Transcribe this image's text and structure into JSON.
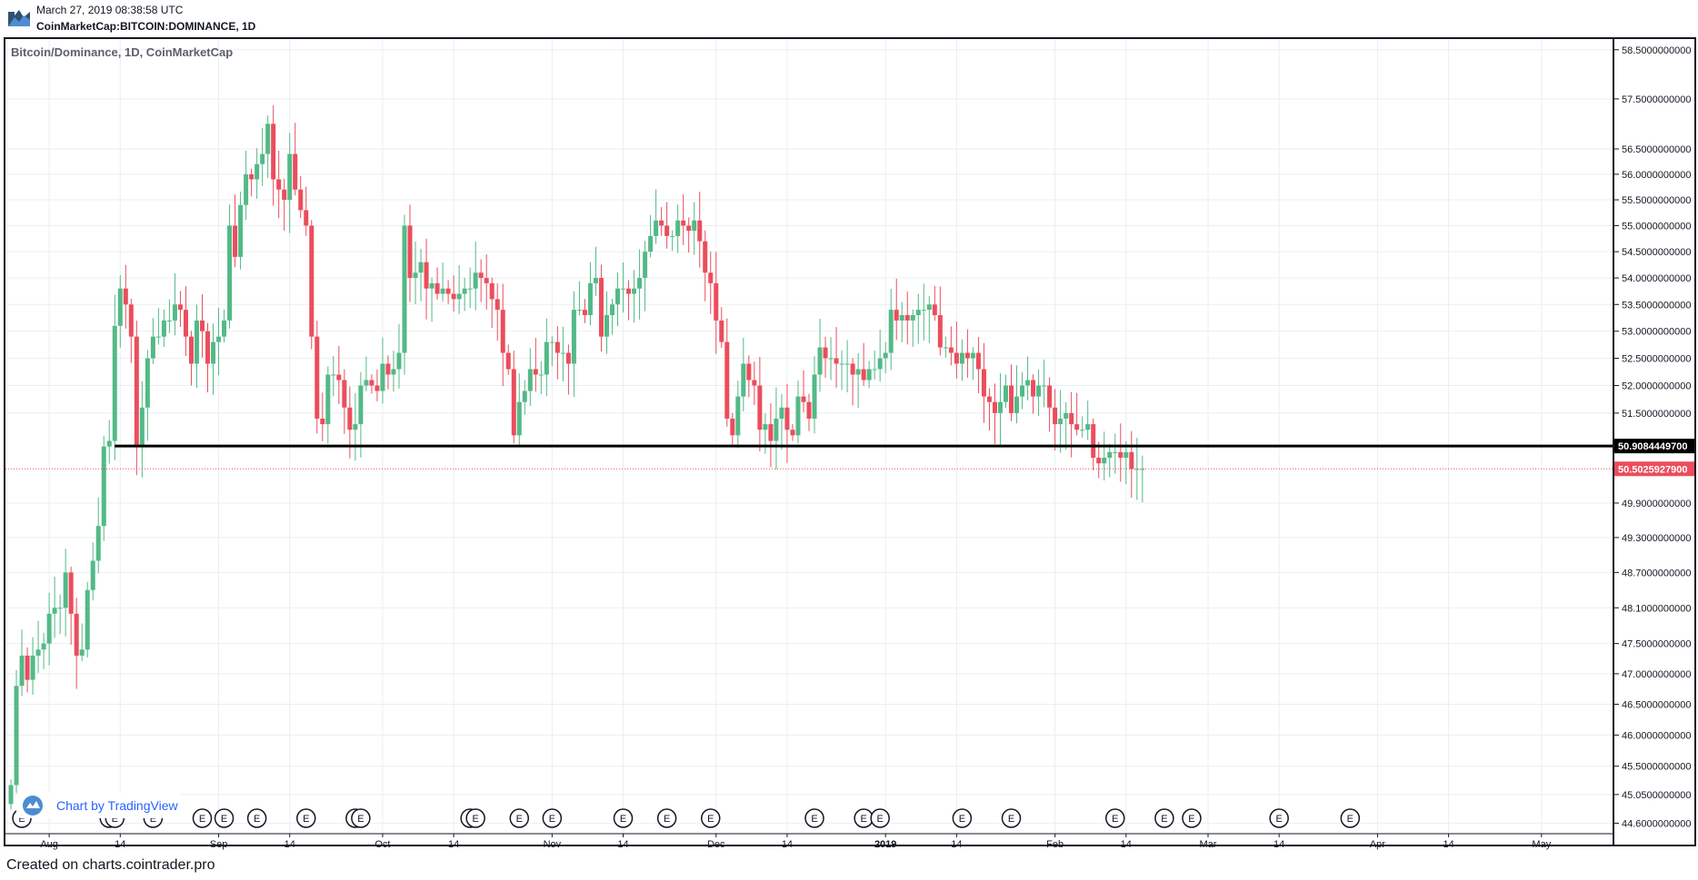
{
  "header": {
    "timestamp": "March 27, 2019 08:38:58 UTC",
    "symbol": "CoinMarketCap:BITCOIN:DOMINANCE, 1D"
  },
  "chart_title": "Bitcoin/Dominance, 1D, CoinMarketCap",
  "branding": {
    "tradingview": "Chart by TradingView"
  },
  "footer": {
    "created": "Created on charts.cointrader.pro"
  },
  "events_label": "E",
  "colors": {
    "up": "#53b987",
    "down": "#eb4d5c",
    "grid": "#e9eff2",
    "frame": "#131722",
    "support": "#000000",
    "last": "#eb4d5c"
  },
  "chart_data": {
    "type": "candlestick",
    "title": "Bitcoin/Dominance, 1D, CoinMarketCap",
    "date_start": "2018-07-25",
    "xlim": [
      "2018-07-24",
      "2019-05-14"
    ],
    "ylim": [
      44.45,
      58.72
    ],
    "y_scale": "log",
    "grid": true,
    "x_ticks": [
      {
        "label": "Aug",
        "date": "2018-08-01"
      },
      {
        "label": "14",
        "date": "2018-08-14"
      },
      {
        "label": "Sep",
        "date": "2018-09-01"
      },
      {
        "label": "14",
        "date": "2018-09-14"
      },
      {
        "label": "Oct",
        "date": "2018-10-01"
      },
      {
        "label": "14",
        "date": "2018-10-14"
      },
      {
        "label": "Nov",
        "date": "2018-11-01"
      },
      {
        "label": "14",
        "date": "2018-11-14"
      },
      {
        "label": "Dec",
        "date": "2018-12-01"
      },
      {
        "label": "14",
        "date": "2018-12-14"
      },
      {
        "label": "2019",
        "date": "2019-01-01"
      },
      {
        "label": "14",
        "date": "2019-01-14"
      },
      {
        "label": "Feb",
        "date": "2019-02-01"
      },
      {
        "label": "14",
        "date": "2019-02-14"
      },
      {
        "label": "Mar",
        "date": "2019-03-01"
      },
      {
        "label": "14",
        "date": "2019-03-14"
      },
      {
        "label": "Apr",
        "date": "2019-04-01"
      },
      {
        "label": "14",
        "date": "2019-04-14"
      },
      {
        "label": "May",
        "date": "2019-05-01"
      }
    ],
    "y_ticks": [
      {
        "label": "44.6000000000",
        "value": 44.6
      },
      {
        "label": "45.0500000000",
        "value": 45.05
      },
      {
        "label": "45.5000000000",
        "value": 45.5
      },
      {
        "label": "46.0000000000",
        "value": 46.0
      },
      {
        "label": "46.5000000000",
        "value": 46.5
      },
      {
        "label": "47.0000000000",
        "value": 47.0
      },
      {
        "label": "47.5000000000",
        "value": 47.5
      },
      {
        "label": "48.1000000000",
        "value": 48.1
      },
      {
        "label": "48.7000000000",
        "value": 48.7
      },
      {
        "label": "49.3000000000",
        "value": 49.3
      },
      {
        "label": "49.9000000000",
        "value": 49.9
      },
      {
        "label": "51.5000000000",
        "value": 51.5
      },
      {
        "label": "52.0000000000",
        "value": 52.0
      },
      {
        "label": "52.5000000000",
        "value": 52.5
      },
      {
        "label": "53.0000000000",
        "value": 53.0
      },
      {
        "label": "53.5000000000",
        "value": 53.5
      },
      {
        "label": "54.0000000000",
        "value": 54.0
      },
      {
        "label": "54.5000000000",
        "value": 54.5
      },
      {
        "label": "55.0000000000",
        "value": 55.0
      },
      {
        "label": "55.5000000000",
        "value": 55.5
      },
      {
        "label": "56.0000000000",
        "value": 56.0
      },
      {
        "label": "56.5000000000",
        "value": 56.5
      },
      {
        "label": "57.5000000000",
        "value": 57.5
      },
      {
        "label": "58.5000000000",
        "value": 58.5
      }
    ],
    "support_line": {
      "value": 50.90844497,
      "label": "50.9084449700",
      "start_date": "2018-08-13"
    },
    "last_price": {
      "value": 50.50259279,
      "label": "50.5025927900"
    },
    "event_dates": [
      "2018-07-27",
      "2018-08-12",
      "2018-08-13",
      "2018-08-20",
      "2018-08-29",
      "2018-09-02",
      "2018-09-08",
      "2018-09-17",
      "2018-09-26",
      "2018-09-27",
      "2018-10-17",
      "2018-10-18",
      "2018-10-26",
      "2018-11-01",
      "2018-11-14",
      "2018-11-22",
      "2018-11-30",
      "2018-12-19",
      "2018-12-28",
      "2018-12-31",
      "2019-01-15",
      "2019-01-24",
      "2019-02-12",
      "2019-02-21",
      "2019-02-26",
      "2019-03-14",
      "2019-03-27"
    ],
    "closes": [
      45.2,
      46.8,
      47.3,
      46.9,
      47.3,
      47.4,
      47.5,
      48.0,
      48.1,
      48.1,
      48.7,
      48.0,
      47.3,
      47.4,
      48.4,
      48.9,
      49.5,
      50.9,
      51.0,
      53.1,
      53.8,
      53.5,
      52.9,
      50.9,
      51.6,
      52.5,
      52.9,
      52.9,
      53.2,
      53.2,
      53.5,
      53.4,
      52.9,
      52.4,
      53.2,
      53.0,
      52.4,
      52.8,
      52.9,
      53.2,
      55.0,
      54.4,
      55.4,
      56.0,
      55.9,
      56.2,
      56.4,
      57.0,
      55.9,
      55.7,
      55.5,
      56.4,
      55.7,
      55.3,
      55.0,
      52.9,
      51.4,
      51.3,
      52.2,
      52.2,
      52.1,
      51.6,
      51.2,
      51.3,
      52.0,
      52.1,
      52.0,
      51.9,
      52.4,
      52.2,
      52.3,
      52.6,
      55.0,
      54.0,
      54.1,
      54.3,
      53.8,
      53.9,
      53.7,
      53.8,
      53.7,
      53.6,
      53.7,
      53.8,
      53.8,
      54.1,
      54.0,
      53.9,
      53.6,
      53.4,
      52.6,
      52.3,
      51.1,
      51.7,
      51.9,
      52.3,
      52.2,
      52.2,
      52.8,
      52.8,
      52.6,
      52.6,
      52.4,
      53.4,
      53.4,
      53.3,
      53.9,
      54.0,
      52.9,
      53.3,
      53.5,
      53.8,
      53.8,
      53.7,
      53.8,
      54.0,
      54.5,
      54.8,
      55.1,
      55.0,
      54.8,
      54.8,
      55.1,
      55.0,
      54.9,
      55.1,
      54.7,
      54.1,
      53.9,
      53.2,
      52.8,
      51.4,
      51.1,
      51.8,
      52.4,
      52.1,
      52.0,
      51.2,
      51.3,
      51.0,
      51.4,
      51.6,
      51.2,
      51.1,
      51.8,
      51.7,
      51.4,
      52.2,
      52.7,
      52.5,
      52.5,
      52.4,
      52.4,
      52.4,
      52.2,
      52.3,
      52.1,
      52.3,
      52.3,
      52.5,
      52.6,
      53.4,
      53.2,
      53.3,
      53.2,
      53.3,
      53.4,
      53.4,
      53.5,
      53.3,
      52.7,
      52.7,
      52.6,
      52.4,
      52.6,
      52.5,
      52.6,
      52.3,
      51.8,
      51.7,
      51.5,
      51.7,
      52.0,
      51.5,
      51.8,
      52.0,
      52.1,
      51.8,
      52.0,
      52.0,
      51.6,
      51.3,
      51.4,
      51.5,
      51.3,
      51.2,
      51.2,
      51.3,
      50.7,
      50.6,
      50.7,
      50.8,
      50.8,
      50.7,
      50.8,
      50.5,
      50.5,
      50.5
    ]
  }
}
